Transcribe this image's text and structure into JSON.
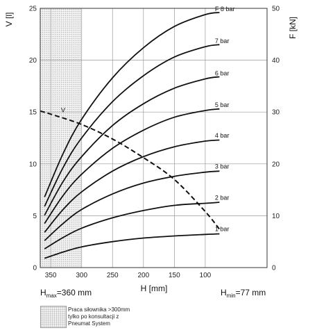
{
  "chart_data": {
    "type": "line",
    "xlabel": "H [mm]",
    "ylabel_left": "V [l]",
    "ylabel_right": "F [kN]",
    "x_reversed": true,
    "xlim": [
      367,
      0
    ],
    "ylim_left": [
      0,
      25
    ],
    "ylim_right": [
      0,
      50
    ],
    "x_ticks": [
      350,
      300,
      250,
      200,
      150,
      100
    ],
    "y_left_ticks": [
      0,
      5,
      10,
      15,
      20,
      25
    ],
    "y_right_ticks": [
      0,
      10,
      20,
      30,
      40,
      50
    ],
    "grid": true,
    "annotations": {
      "hmax": {
        "prefix": "H",
        "sub": "max",
        "suffix": "=360 mm"
      },
      "hmin": {
        "prefix": "H",
        "sub": "min",
        "suffix": "=77 mm"
      }
    },
    "hatched_region": {
      "x_from": 367,
      "x_to": 300
    },
    "force_series": [
      {
        "name": "1 bar",
        "axis": "right",
        "x": [
          360,
          330,
          300,
          250,
          200,
          150,
          100,
          77
        ],
        "y": [
          1.8,
          3.0,
          4.0,
          5.0,
          5.7,
          6.1,
          6.4,
          6.5
        ]
      },
      {
        "name": "2 bar",
        "axis": "right",
        "x": [
          360,
          330,
          300,
          250,
          200,
          150,
          100,
          77
        ],
        "y": [
          3.6,
          5.8,
          7.6,
          9.6,
          11.0,
          12.0,
          12.4,
          12.6
        ]
      },
      {
        "name": "3 bar",
        "axis": "right",
        "x": [
          360,
          330,
          300,
          250,
          200,
          150,
          100,
          77
        ],
        "y": [
          5.2,
          8.5,
          11.2,
          14.2,
          16.3,
          17.6,
          18.4,
          18.6
        ]
      },
      {
        "name": "4 bar",
        "axis": "right",
        "x": [
          360,
          330,
          300,
          250,
          200,
          150,
          100,
          77
        ],
        "y": [
          6.8,
          11.2,
          14.6,
          18.6,
          21.4,
          23.3,
          24.4,
          24.6
        ]
      },
      {
        "name": "5 bar",
        "axis": "right",
        "x": [
          360,
          330,
          300,
          250,
          200,
          150,
          100,
          77
        ],
        "y": [
          8.5,
          13.9,
          18.0,
          23.0,
          26.5,
          29.0,
          30.3,
          30.6
        ]
      },
      {
        "name": "6 bar",
        "axis": "right",
        "x": [
          360,
          330,
          300,
          250,
          200,
          150,
          100,
          77
        ],
        "y": [
          10.1,
          16.6,
          21.4,
          27.4,
          31.6,
          34.6,
          36.4,
          36.8
        ]
      },
      {
        "name": "7 bar",
        "axis": "right",
        "x": [
          360,
          330,
          300,
          250,
          200,
          150,
          100,
          77
        ],
        "y": [
          11.8,
          19.3,
          25.0,
          32.0,
          37.0,
          40.6,
          42.6,
          43.0
        ]
      },
      {
        "name": "F 8 bar",
        "axis": "right",
        "x": [
          360,
          330,
          300,
          250,
          200,
          150,
          100,
          77
        ],
        "y": [
          13.6,
          22.0,
          28.6,
          36.6,
          42.4,
          46.5,
          48.8,
          49.2
        ]
      }
    ],
    "volume_series": {
      "name": "V",
      "axis": "left",
      "style": "dashed",
      "x": [
        367,
        350,
        300,
        250,
        200,
        150,
        100,
        77
      ],
      "y": [
        15.1,
        14.8,
        13.8,
        12.4,
        10.6,
        8.5,
        5.4,
        3.7
      ]
    }
  },
  "legend": {
    "lines": [
      "Praca siłownika >300mm",
      "tylko po konsultacji z",
      "Pneumat System"
    ]
  }
}
